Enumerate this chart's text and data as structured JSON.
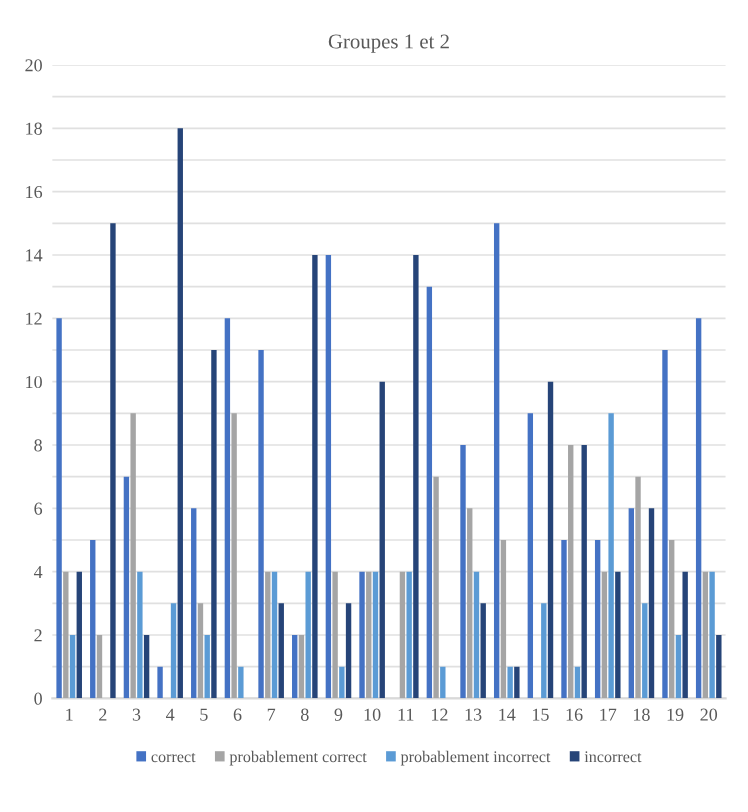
{
  "chart_data": {
    "type": "bar",
    "title": "Groupes 1 et 2",
    "categories": [
      "1",
      "2",
      "3",
      "4",
      "5",
      "6",
      "7",
      "8",
      "9",
      "10",
      "11",
      "12",
      "13",
      "14",
      "15",
      "16",
      "17",
      "18",
      "19",
      "20"
    ],
    "series": [
      {
        "name": "correct",
        "color": "#4472c4",
        "values": [
          12,
          5,
          7,
          1,
          6,
          12,
          11,
          2,
          14,
          4,
          0,
          13,
          8,
          15,
          9,
          5,
          5,
          6,
          11,
          12
        ]
      },
      {
        "name": "probablement correct",
        "color": "#a5a5a5",
        "values": [
          4,
          2,
          9,
          0,
          3,
          9,
          4,
          2,
          4,
          4,
          4,
          7,
          6,
          5,
          0,
          8,
          4,
          7,
          5,
          4
        ]
      },
      {
        "name": "probablement incorrect",
        "color": "#5b9bd5",
        "values": [
          2,
          0,
          4,
          3,
          2,
          1,
          4,
          4,
          1,
          4,
          4,
          1,
          4,
          1,
          3,
          1,
          9,
          3,
          2,
          4
        ]
      },
      {
        "name": "incorrect",
        "color": "#264478",
        "values": [
          4,
          15,
          2,
          18,
          11,
          0,
          3,
          14,
          3,
          10,
          14,
          0,
          3,
          1,
          10,
          8,
          4,
          6,
          4,
          2
        ]
      }
    ],
    "ylim": [
      0,
      20
    ],
    "yticks": [
      0,
      {
        "value": 1,
        "label": null
      },
      2,
      {
        "value": 3,
        "label": null
      },
      4,
      {
        "value": 5,
        "label": null
      },
      6,
      {
        "value": 7,
        "label": null
      },
      8,
      {
        "value": 9,
        "label": null
      },
      10,
      {
        "value": 11,
        "label": null
      },
      12,
      {
        "value": 13,
        "label": null
      },
      14,
      {
        "value": 15,
        "label": null
      },
      16,
      {
        "value": 17,
        "label": null
      },
      18,
      {
        "value": 19,
        "label": null
      },
      20
    ],
    "grid": "y",
    "legend": "bottom"
  }
}
